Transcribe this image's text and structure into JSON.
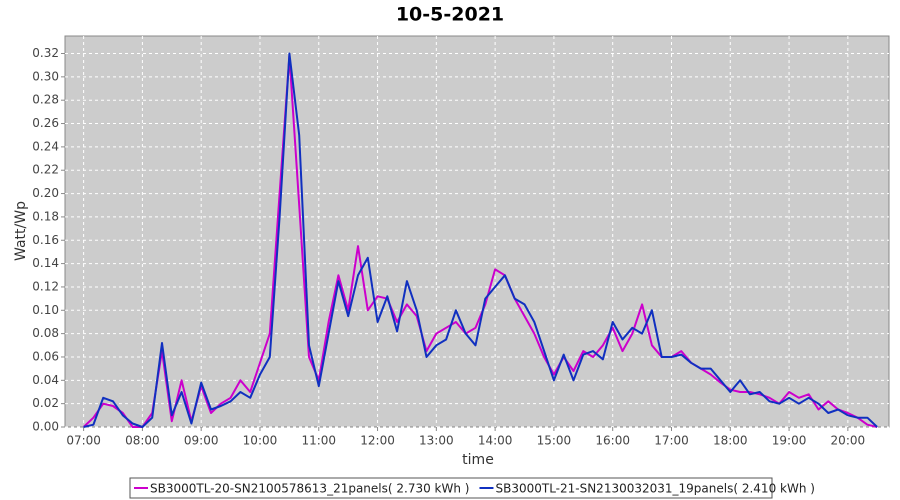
{
  "chart_data": {
    "type": "line",
    "title": "10-5-2021",
    "xlabel": "time",
    "ylabel": "Watt/Wp",
    "x": [
      420,
      430,
      440,
      450,
      460,
      470,
      480,
      490,
      500,
      510,
      520,
      530,
      540,
      550,
      560,
      570,
      580,
      590,
      600,
      610,
      620,
      630,
      640,
      650,
      660,
      670,
      680,
      690,
      700,
      710,
      720,
      730,
      740,
      750,
      760,
      770,
      780,
      790,
      800,
      810,
      820,
      830,
      840,
      850,
      860,
      870,
      880,
      890,
      900,
      910,
      920,
      930,
      940,
      950,
      960,
      970,
      980,
      990,
      1000,
      1010,
      1020,
      1030,
      1040,
      1050,
      1060,
      1070,
      1080,
      1090,
      1100,
      1110,
      1120,
      1130,
      1140,
      1150,
      1160,
      1170,
      1180,
      1190,
      1200,
      1210,
      1220,
      1230
    ],
    "series": [
      {
        "name": "SB3000TL-20-SN2100578613_21panels( 2.730 kWh )",
        "color": "#cc00cc",
        "values": [
          0.0,
          0.008,
          0.02,
          0.018,
          0.012,
          0.0,
          0.0,
          0.012,
          0.065,
          0.005,
          0.04,
          0.005,
          0.035,
          0.012,
          0.02,
          0.025,
          0.04,
          0.03,
          0.055,
          0.08,
          0.2,
          0.318,
          0.19,
          0.06,
          0.04,
          0.09,
          0.13,
          0.1,
          0.155,
          0.1,
          0.112,
          0.11,
          0.09,
          0.105,
          0.095,
          0.065,
          0.08,
          0.085,
          0.09,
          0.08,
          0.085,
          0.105,
          0.135,
          0.13,
          0.11,
          0.095,
          0.08,
          0.06,
          0.045,
          0.06,
          0.048,
          0.065,
          0.06,
          0.07,
          0.085,
          0.065,
          0.08,
          0.105,
          0.07,
          0.06,
          0.06,
          0.065,
          0.055,
          0.05,
          0.045,
          0.038,
          0.032,
          0.03,
          0.03,
          0.028,
          0.025,
          0.02,
          0.03,
          0.025,
          0.028,
          0.015,
          0.022,
          0.015,
          0.012,
          0.008,
          0.002,
          0.0
        ]
      },
      {
        "name": "SB3000TL-21-SN2130032031_19panels( 2.410 kWh )",
        "color": "#1030c0",
        "values": [
          0.0,
          0.002,
          0.025,
          0.022,
          0.01,
          0.003,
          0.0,
          0.008,
          0.072,
          0.01,
          0.03,
          0.003,
          0.038,
          0.015,
          0.018,
          0.022,
          0.03,
          0.025,
          0.045,
          0.06,
          0.18,
          0.32,
          0.25,
          0.07,
          0.035,
          0.08,
          0.125,
          0.095,
          0.13,
          0.145,
          0.09,
          0.112,
          0.082,
          0.125,
          0.1,
          0.06,
          0.07,
          0.075,
          0.1,
          0.08,
          0.07,
          0.11,
          0.12,
          0.13,
          0.11,
          0.105,
          0.09,
          0.065,
          0.04,
          0.062,
          0.04,
          0.062,
          0.065,
          0.058,
          0.09,
          0.075,
          0.085,
          0.08,
          0.1,
          0.06,
          0.06,
          0.062,
          0.055,
          0.05,
          0.05,
          0.04,
          0.03,
          0.04,
          0.028,
          0.03,
          0.022,
          0.02,
          0.025,
          0.02,
          0.025,
          0.02,
          0.012,
          0.015,
          0.01,
          0.008,
          0.008,
          0.0
        ]
      }
    ],
    "xlim": [
      401,
      1242
    ],
    "ylim": [
      0,
      0.335
    ],
    "xticks": [
      {
        "value": 420,
        "label": "07:00"
      },
      {
        "value": 480,
        "label": "08:00"
      },
      {
        "value": 540,
        "label": "09:00"
      },
      {
        "value": 600,
        "label": "10:00"
      },
      {
        "value": 660,
        "label": "11:00"
      },
      {
        "value": 720,
        "label": "12:00"
      },
      {
        "value": 780,
        "label": "13:00"
      },
      {
        "value": 840,
        "label": "14:00"
      },
      {
        "value": 900,
        "label": "15:00"
      },
      {
        "value": 960,
        "label": "16:00"
      },
      {
        "value": 1020,
        "label": "17:00"
      },
      {
        "value": 1080,
        "label": "18:00"
      },
      {
        "value": 1140,
        "label": "19:00"
      },
      {
        "value": 1200,
        "label": "20:00"
      }
    ],
    "yticks": [
      {
        "value": 0,
        "label": "0.00"
      },
      {
        "value": 0.02,
        "label": "0.02"
      },
      {
        "value": 0.04,
        "label": "0.04"
      },
      {
        "value": 0.06,
        "label": "0.06"
      },
      {
        "value": 0.08,
        "label": "0.08"
      },
      {
        "value": 0.1,
        "label": "0.10"
      },
      {
        "value": 0.12,
        "label": "0.12"
      },
      {
        "value": 0.14,
        "label": "0.14"
      },
      {
        "value": 0.16,
        "label": "0.16"
      },
      {
        "value": 0.18,
        "label": "0.18"
      },
      {
        "value": 0.2,
        "label": "0.20"
      },
      {
        "value": 0.22,
        "label": "0.22"
      },
      {
        "value": 0.24,
        "label": "0.24"
      },
      {
        "value": 0.26,
        "label": "0.26"
      },
      {
        "value": 0.28,
        "label": "0.28"
      },
      {
        "value": 0.3,
        "label": "0.30"
      },
      {
        "value": 0.32,
        "label": "0.32"
      }
    ],
    "grid": true
  }
}
